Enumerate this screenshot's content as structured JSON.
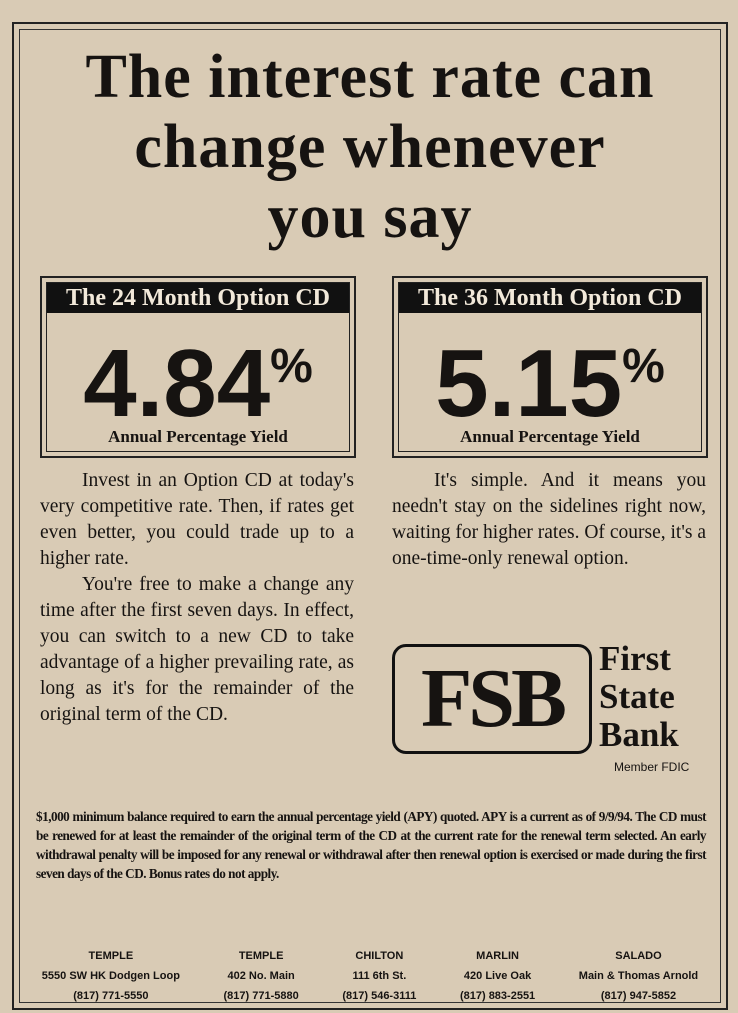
{
  "headline": {
    "lines": [
      "The interest rate can",
      "change whenever",
      "you say"
    ]
  },
  "offers": [
    {
      "title": "The 24 Month Option CD",
      "rate": "4.84",
      "unit": "%",
      "label": "Annual Percentage Yield"
    },
    {
      "title": "The 36 Month Option CD",
      "rate": "5.15",
      "unit": "%",
      "label": "Annual Percentage Yield"
    }
  ],
  "left_column": [
    "Invest in an Option CD at today's very competitive rate. Then, if rates get even better, you could trade up to a higher rate.",
    "You're free to make a change any time after the first seven days. In effect, you can switch to a new CD to take advantage of a higher prevailing rate, as long as it's for the remainder of the original term of the CD."
  ],
  "right_column": [
    "It's simple. And it means you needn't stay on the sidelines right now, waiting for higher rates. Of course, it's a one-time-only renewal option."
  ],
  "logo": {
    "mark": "FSB",
    "name": [
      "First",
      "State",
      "Bank"
    ],
    "member": "Member FDIC"
  },
  "disclaimer": "$1,000 minimum balance required to earn the annual percentage yield (APY) quoted. APY is a current as of 9/9/94. The CD must be renewed for at least the remainder of the original term of the CD at the current rate for the renewal term selected. An early withdrawal penalty will be imposed for any renewal or withdrawal after then renewal option is exercised or made during the first seven days of the CD. Bonus rates do not apply.",
  "branches": [
    {
      "city": "TEMPLE",
      "address": "5550 SW HK Dodgen Loop",
      "phone": "(817) 771-5550"
    },
    {
      "city": "TEMPLE",
      "address": "402 No. Main",
      "phone": "(817) 771-5880"
    },
    {
      "city": "CHILTON",
      "address": "111 6th St.",
      "phone": "(817) 546-3111"
    },
    {
      "city": "MARLIN",
      "address": "420 Live Oak",
      "phone": "(817) 883-2551"
    },
    {
      "city": "SALADO",
      "address": "Main & Thomas Arnold",
      "phone": "(817) 947-5852"
    }
  ]
}
